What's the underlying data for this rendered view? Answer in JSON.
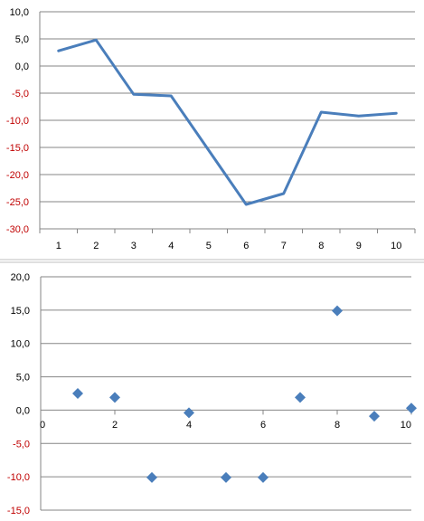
{
  "colors": {
    "series": "#4a7ebb",
    "grid": "#868686",
    "axis": "#868686",
    "positive_label": "#000000",
    "negative_label": "#c00000"
  },
  "chart_data": [
    {
      "type": "line",
      "categories": [
        "1",
        "2",
        "3",
        "4",
        "5",
        "6",
        "7",
        "8",
        "9",
        "10"
      ],
      "series": [
        {
          "values": [
            2.8,
            4.8,
            -5.2,
            -5.5,
            -15.5,
            -25.5,
            -23.5,
            -8.5,
            -9.2,
            -8.7
          ]
        }
      ],
      "ylim": [
        -30,
        10
      ],
      "y_ticks": [
        {
          "value": 10,
          "label": "10,0"
        },
        {
          "value": 5,
          "label": "5,0"
        },
        {
          "value": 0,
          "label": "0,0"
        },
        {
          "value": -5,
          "label": "-5,0"
        },
        {
          "value": -10,
          "label": "-10,0"
        },
        {
          "value": -15,
          "label": "-15,0"
        },
        {
          "value": -20,
          "label": "-20,0"
        },
        {
          "value": -25,
          "label": "-25,0"
        },
        {
          "value": -30,
          "label": "-30,0"
        }
      ],
      "grid": true,
      "legend": "none"
    },
    {
      "type": "scatter",
      "series": [
        {
          "x": [
            1,
            2,
            3,
            4,
            5,
            6,
            7,
            8,
            9,
            10
          ],
          "y": [
            2.5,
            1.9,
            -10.1,
            -0.4,
            -10.1,
            -10.1,
            1.9,
            14.9,
            -0.9,
            0.3
          ]
        }
      ],
      "xlim": [
        0,
        10
      ],
      "ylim": [
        -15,
        20
      ],
      "x_ticks": [
        {
          "value": 0,
          "label": "0"
        },
        {
          "value": 2,
          "label": "2"
        },
        {
          "value": 4,
          "label": "4"
        },
        {
          "value": 6,
          "label": "6"
        },
        {
          "value": 8,
          "label": "8"
        },
        {
          "value": 10,
          "label": "10"
        }
      ],
      "y_ticks": [
        {
          "value": 20,
          "label": "20,0"
        },
        {
          "value": 15,
          "label": "15,0"
        },
        {
          "value": 10,
          "label": "10,0"
        },
        {
          "value": 5,
          "label": "5,0"
        },
        {
          "value": 0,
          "label": "0,0"
        },
        {
          "value": -5,
          "label": "-5,0"
        },
        {
          "value": -10,
          "label": "-10,0"
        },
        {
          "value": -15,
          "label": "-15,0"
        }
      ],
      "marker": "diamond",
      "grid": true,
      "legend": "none"
    }
  ]
}
